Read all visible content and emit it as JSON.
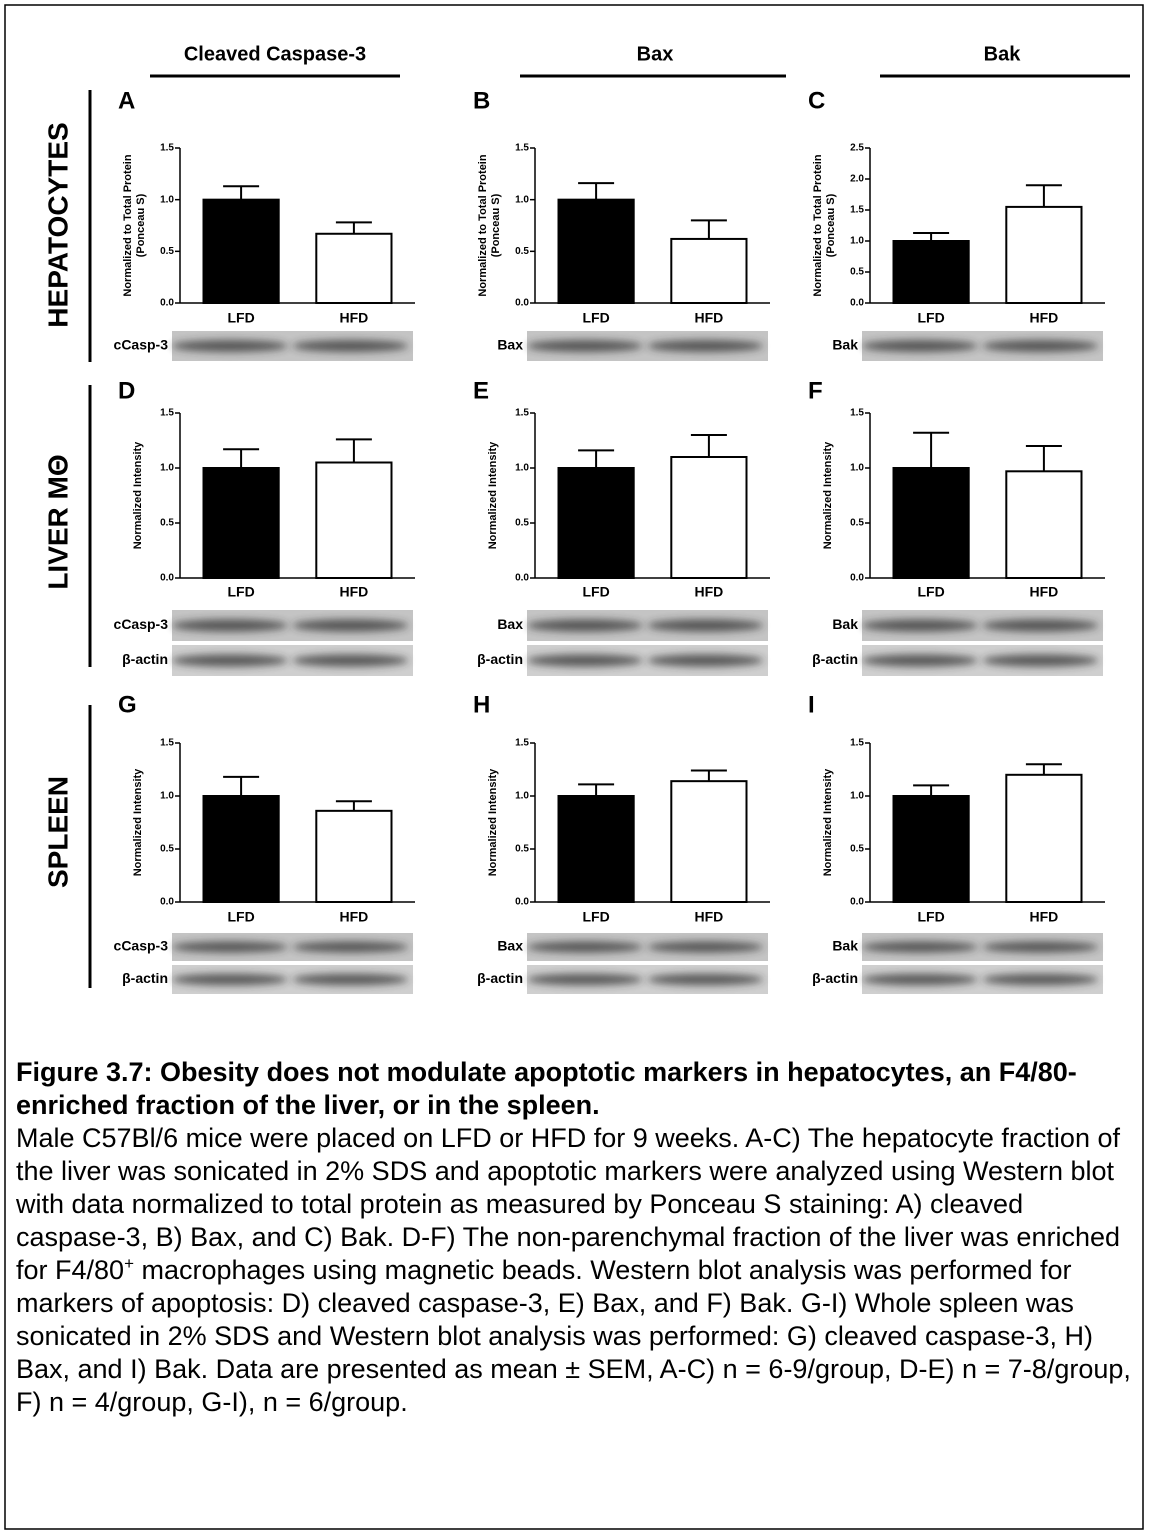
{
  "column_headers": [
    "Cleaved Caspase-3",
    "Bax",
    "Bak"
  ],
  "row_labels": [
    "HEPATOCYTES",
    "LIVER MΘ",
    "SPLEEN"
  ],
  "chart_data": [
    {
      "type": "bar",
      "title": "A",
      "ylabel": [
        "Normalized to Total Protein",
        "(Ponceau S)"
      ],
      "categories": [
        "LFD",
        "HFD"
      ],
      "values": [
        1.0,
        0.67
      ],
      "errors": [
        0.13,
        0.11
      ],
      "colors": [
        "#000000",
        "#ffffff"
      ],
      "ylim": [
        0,
        1.5
      ],
      "yticks": [
        {
          "value": 0,
          "label": "0.0"
        },
        0.5,
        {
          "value": 1,
          "label": "1.0"
        },
        1.5
      ],
      "blot_labels": [
        "cCasp-3"
      ]
    },
    {
      "type": "bar",
      "title": "B",
      "ylabel": [
        "Normalized to Total Protein",
        "(Ponceau S)"
      ],
      "categories": [
        "LFD",
        "HFD"
      ],
      "values": [
        1.0,
        0.62
      ],
      "errors": [
        0.16,
        0.18
      ],
      "colors": [
        "#000000",
        "#ffffff"
      ],
      "ylim": [
        0,
        1.5
      ],
      "yticks": [
        {
          "value": 0,
          "label": "0.0"
        },
        0.5,
        {
          "value": 1,
          "label": "1.0"
        },
        1.5
      ],
      "blot_labels": [
        "Bax"
      ]
    },
    {
      "type": "bar",
      "title": "C",
      "ylabel": [
        "Normalized to Total Protein",
        "(Ponceau S)"
      ],
      "categories": [
        "LFD",
        "HFD"
      ],
      "values": [
        1.0,
        1.55
      ],
      "errors": [
        0.13,
        0.35
      ],
      "colors": [
        "#000000",
        "#ffffff"
      ],
      "ylim": [
        0,
        2.5
      ],
      "yticks": [
        {
          "value": 0,
          "label": "0.0"
        },
        0.5,
        {
          "value": 1,
          "label": "1.0"
        },
        1.5,
        {
          "value": 2,
          "label": "2.0"
        },
        2.5
      ],
      "blot_labels": [
        "Bak"
      ]
    },
    {
      "type": "bar",
      "title": "D",
      "ylabel": "Normalized Intensity",
      "categories": [
        "LFD",
        "HFD"
      ],
      "values": [
        1.0,
        1.05
      ],
      "errors": [
        0.17,
        0.21
      ],
      "colors": [
        "#000000",
        "#ffffff"
      ],
      "ylim": [
        0,
        1.5
      ],
      "yticks": [
        {
          "value": 0,
          "label": "0.0"
        },
        0.5,
        {
          "value": 1,
          "label": "1.0"
        },
        1.5
      ],
      "blot_labels": [
        "cCasp-3",
        "β-actin"
      ]
    },
    {
      "type": "bar",
      "title": "E",
      "ylabel": "Normalized Intensity",
      "categories": [
        "LFD",
        "HFD"
      ],
      "values": [
        1.0,
        1.1
      ],
      "errors": [
        0.16,
        0.2
      ],
      "colors": [
        "#000000",
        "#ffffff"
      ],
      "ylim": [
        0,
        1.5
      ],
      "yticks": [
        {
          "value": 0,
          "label": "0.0"
        },
        0.5,
        {
          "value": 1,
          "label": "1.0"
        },
        1.5
      ],
      "blot_labels": [
        "Bax",
        "β-actin"
      ]
    },
    {
      "type": "bar",
      "title": "F",
      "ylabel": "Normalized Intensity",
      "categories": [
        "LFD",
        "HFD"
      ],
      "values": [
        1.0,
        0.97
      ],
      "errors": [
        0.32,
        0.23
      ],
      "colors": [
        "#000000",
        "#ffffff"
      ],
      "ylim": [
        0,
        1.5
      ],
      "yticks": [
        {
          "value": 0,
          "label": "0.0"
        },
        0.5,
        {
          "value": 1,
          "label": "1.0"
        },
        1.5
      ],
      "blot_labels": [
        "Bak",
        "β-actin"
      ]
    },
    {
      "type": "bar",
      "title": "G",
      "ylabel": "Normalized Intensity",
      "categories": [
        "LFD",
        "HFD"
      ],
      "values": [
        1.0,
        0.86
      ],
      "errors": [
        0.18,
        0.09
      ],
      "colors": [
        "#000000",
        "#ffffff"
      ],
      "ylim": [
        0,
        1.5
      ],
      "yticks": [
        {
          "value": 0,
          "label": "0.0"
        },
        0.5,
        {
          "value": 1,
          "label": "1.0"
        },
        1.5
      ],
      "blot_labels": [
        "cCasp-3",
        "β-actin"
      ]
    },
    {
      "type": "bar",
      "title": "H",
      "ylabel": "Normalized Intensity",
      "categories": [
        "LFD",
        "HFD"
      ],
      "values": [
        1.0,
        1.14
      ],
      "errors": [
        0.11,
        0.1
      ],
      "colors": [
        "#000000",
        "#ffffff"
      ],
      "ylim": [
        0,
        1.5
      ],
      "yticks": [
        {
          "value": 0,
          "label": "0.0"
        },
        0.5,
        {
          "value": 1,
          "label": "1.0"
        },
        1.5
      ],
      "blot_labels": [
        "Bax",
        "β-actin"
      ]
    },
    {
      "type": "bar",
      "title": "I",
      "ylabel": "Normalized Intensity",
      "categories": [
        "LFD",
        "HFD"
      ],
      "values": [
        1.0,
        1.2
      ],
      "errors": [
        0.1,
        0.1
      ],
      "colors": [
        "#000000",
        "#ffffff"
      ],
      "ylim": [
        0,
        1.5
      ],
      "yticks": [
        {
          "value": 0,
          "label": "0.0"
        },
        0.5,
        {
          "value": 1,
          "label": "1.0"
        },
        1.5
      ],
      "blot_labels": [
        "Bak",
        "β-actin"
      ]
    }
  ],
  "caption": {
    "title": "Figure 3.7: Obesity does not modulate apoptotic markers in hepatocytes, an F4/80-enriched fraction of the liver, or in the spleen.",
    "body": [
      "Male C57Bl/6 mice were placed on LFD or HFD for 9 weeks. A-C) The hepatocyte fraction of the liver was sonicated in 2% SDS and apoptotic markers were analyzed using Western blot with data normalized to total protein as measured by Ponceau S staining: A) cleaved caspase-3, B) Bax, and C) Bak. D-F) The non-parenchymal fraction of the liver was enriched for F4/80",
      "+",
      " macrophages using magnetic beads. Western blot analysis was performed for markers of apoptosis: D) cleaved caspase-3, E) Bax, and F) Bak. G-I) Whole spleen was sonicated in 2% SDS and Western blot analysis was performed: G) cleaved caspase-3, H) Bax, and I) Bak. Data are presented as mean ± SEM, A-C) n = 6-9/group, D-E) n = 7-8/group, F) n = 4/group, G-I), n = 6/group."
    ]
  }
}
